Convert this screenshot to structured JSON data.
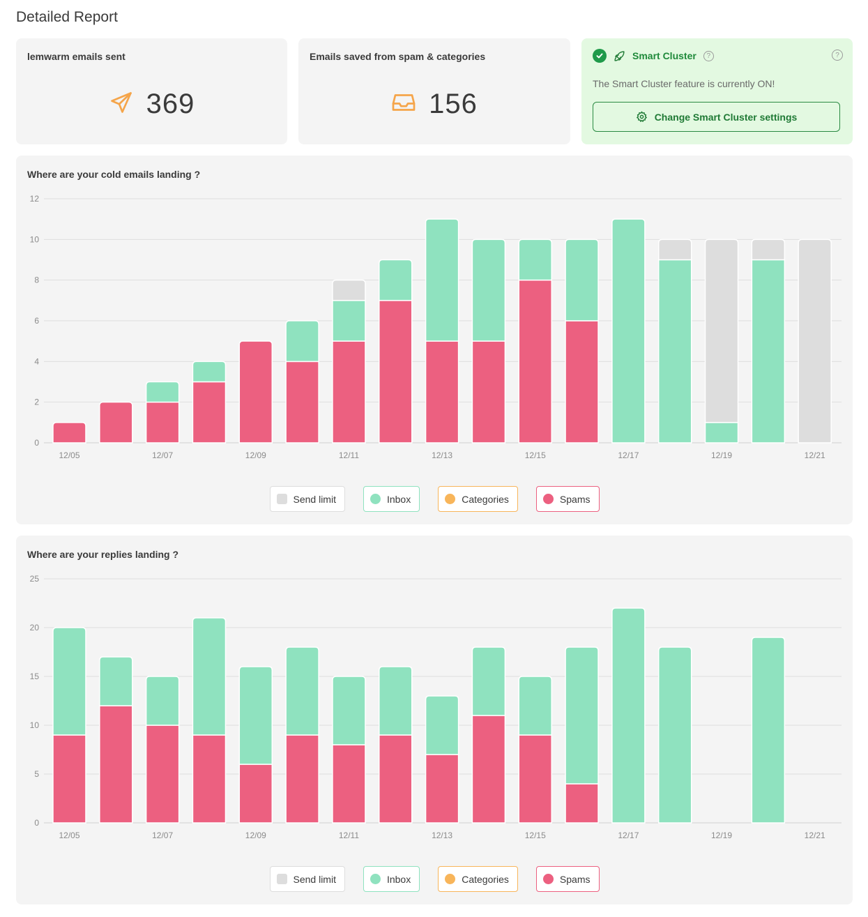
{
  "page_title": "Detailed Report",
  "stats": {
    "sent": {
      "title": "lemwarm emails sent",
      "value": "369",
      "icon": "send-icon"
    },
    "saved": {
      "title": "Emails saved from spam & categories",
      "value": "156",
      "icon": "inbox-tray-icon"
    }
  },
  "smart_cluster": {
    "title": "Smart Cluster",
    "description": "The Smart Cluster feature is currently ON!",
    "button_label": "Change Smart Cluster settings"
  },
  "colors": {
    "send_limit": "#dddddd",
    "inbox": "#8fe2bf",
    "categories": "#f8b55a",
    "spams": "#ec6080",
    "accent": "#1f8a3a",
    "icon_orange": "#f5a54a"
  },
  "legend": [
    {
      "key": "send_limit",
      "label": "Send limit",
      "border": "#dddddd",
      "shape": "square"
    },
    {
      "key": "inbox",
      "label": "Inbox",
      "border": "#8fe2bf",
      "shape": "circle"
    },
    {
      "key": "categories",
      "label": "Categories",
      "border": "#f8b55a",
      "shape": "circle"
    },
    {
      "key": "spams",
      "label": "Spams",
      "border": "#ec6080",
      "shape": "circle"
    }
  ],
  "chart_data": [
    {
      "type": "bar",
      "stacked": true,
      "title": "Where are your cold emails landing ?",
      "xlabel": "",
      "ylabel": "",
      "ylim": [
        0,
        12
      ],
      "yticks": [
        0,
        2,
        4,
        6,
        8,
        10,
        12
      ],
      "grid": true,
      "legend_position": "bottom",
      "categories": [
        "12/05",
        "12/06",
        "12/07",
        "12/08",
        "12/09",
        "12/10",
        "12/11",
        "12/12",
        "12/13",
        "12/14",
        "12/15",
        "12/16",
        "12/17",
        "12/18",
        "12/19",
        "12/20",
        "12/21"
      ],
      "tick_labels": [
        "12/05",
        "",
        "12/07",
        "",
        "12/09",
        "",
        "12/11",
        "",
        "12/13",
        "",
        "12/15",
        "",
        "12/17",
        "",
        "12/19",
        "",
        "12/21"
      ],
      "series": [
        {
          "name": "Spams",
          "key": "spams",
          "values": [
            1,
            2,
            2,
            3,
            5,
            4,
            5,
            7,
            5,
            5,
            8,
            6,
            0,
            0,
            0,
            0,
            0
          ]
        },
        {
          "name": "Categories",
          "key": "categories",
          "values": [
            0,
            0,
            0,
            0,
            0,
            0,
            0,
            0,
            0,
            0,
            0,
            0,
            0,
            0,
            0,
            0,
            0
          ]
        },
        {
          "name": "Inbox",
          "key": "inbox",
          "values": [
            0,
            0,
            1,
            1,
            0,
            2,
            2,
            2,
            6,
            5,
            2,
            4,
            11,
            9,
            1,
            9,
            0
          ]
        },
        {
          "name": "Send limit",
          "key": "send_limit",
          "values": [
            0,
            0,
            0,
            0,
            0,
            0,
            1,
            0,
            0,
            0,
            0,
            0,
            0,
            1,
            9,
            1,
            10
          ]
        }
      ]
    },
    {
      "type": "bar",
      "stacked": true,
      "title": "Where are your replies landing ?",
      "xlabel": "",
      "ylabel": "",
      "ylim": [
        0,
        25
      ],
      "yticks": [
        0,
        5,
        10,
        15,
        20,
        25
      ],
      "grid": true,
      "legend_position": "bottom",
      "categories": [
        "12/05",
        "12/06",
        "12/07",
        "12/08",
        "12/09",
        "12/10",
        "12/11",
        "12/12",
        "12/13",
        "12/14",
        "12/15",
        "12/16",
        "12/17",
        "12/18",
        "12/19",
        "12/20",
        "12/21"
      ],
      "tick_labels": [
        "12/05",
        "",
        "12/07",
        "",
        "12/09",
        "",
        "12/11",
        "",
        "12/13",
        "",
        "12/15",
        "",
        "12/17",
        "",
        "12/19",
        "",
        "12/21"
      ],
      "series": [
        {
          "name": "Spams",
          "key": "spams",
          "values": [
            9,
            12,
            10,
            9,
            6,
            9,
            8,
            9,
            7,
            11,
            9,
            4,
            0,
            0,
            0,
            0,
            0
          ]
        },
        {
          "name": "Categories",
          "key": "categories",
          "values": [
            0,
            0,
            0,
            0,
            0,
            0,
            0,
            0,
            0,
            0,
            0,
            0,
            0,
            0,
            0,
            0,
            0
          ]
        },
        {
          "name": "Inbox",
          "key": "inbox",
          "values": [
            11,
            5,
            5,
            12,
            10,
            9,
            7,
            7,
            6,
            7,
            6,
            14,
            22,
            18,
            0,
            19,
            0
          ]
        },
        {
          "name": "Send limit",
          "key": "send_limit",
          "values": [
            0,
            0,
            0,
            0,
            0,
            0,
            0,
            0,
            0,
            0,
            0,
            0,
            0,
            0,
            0,
            0,
            0
          ]
        }
      ]
    }
  ]
}
